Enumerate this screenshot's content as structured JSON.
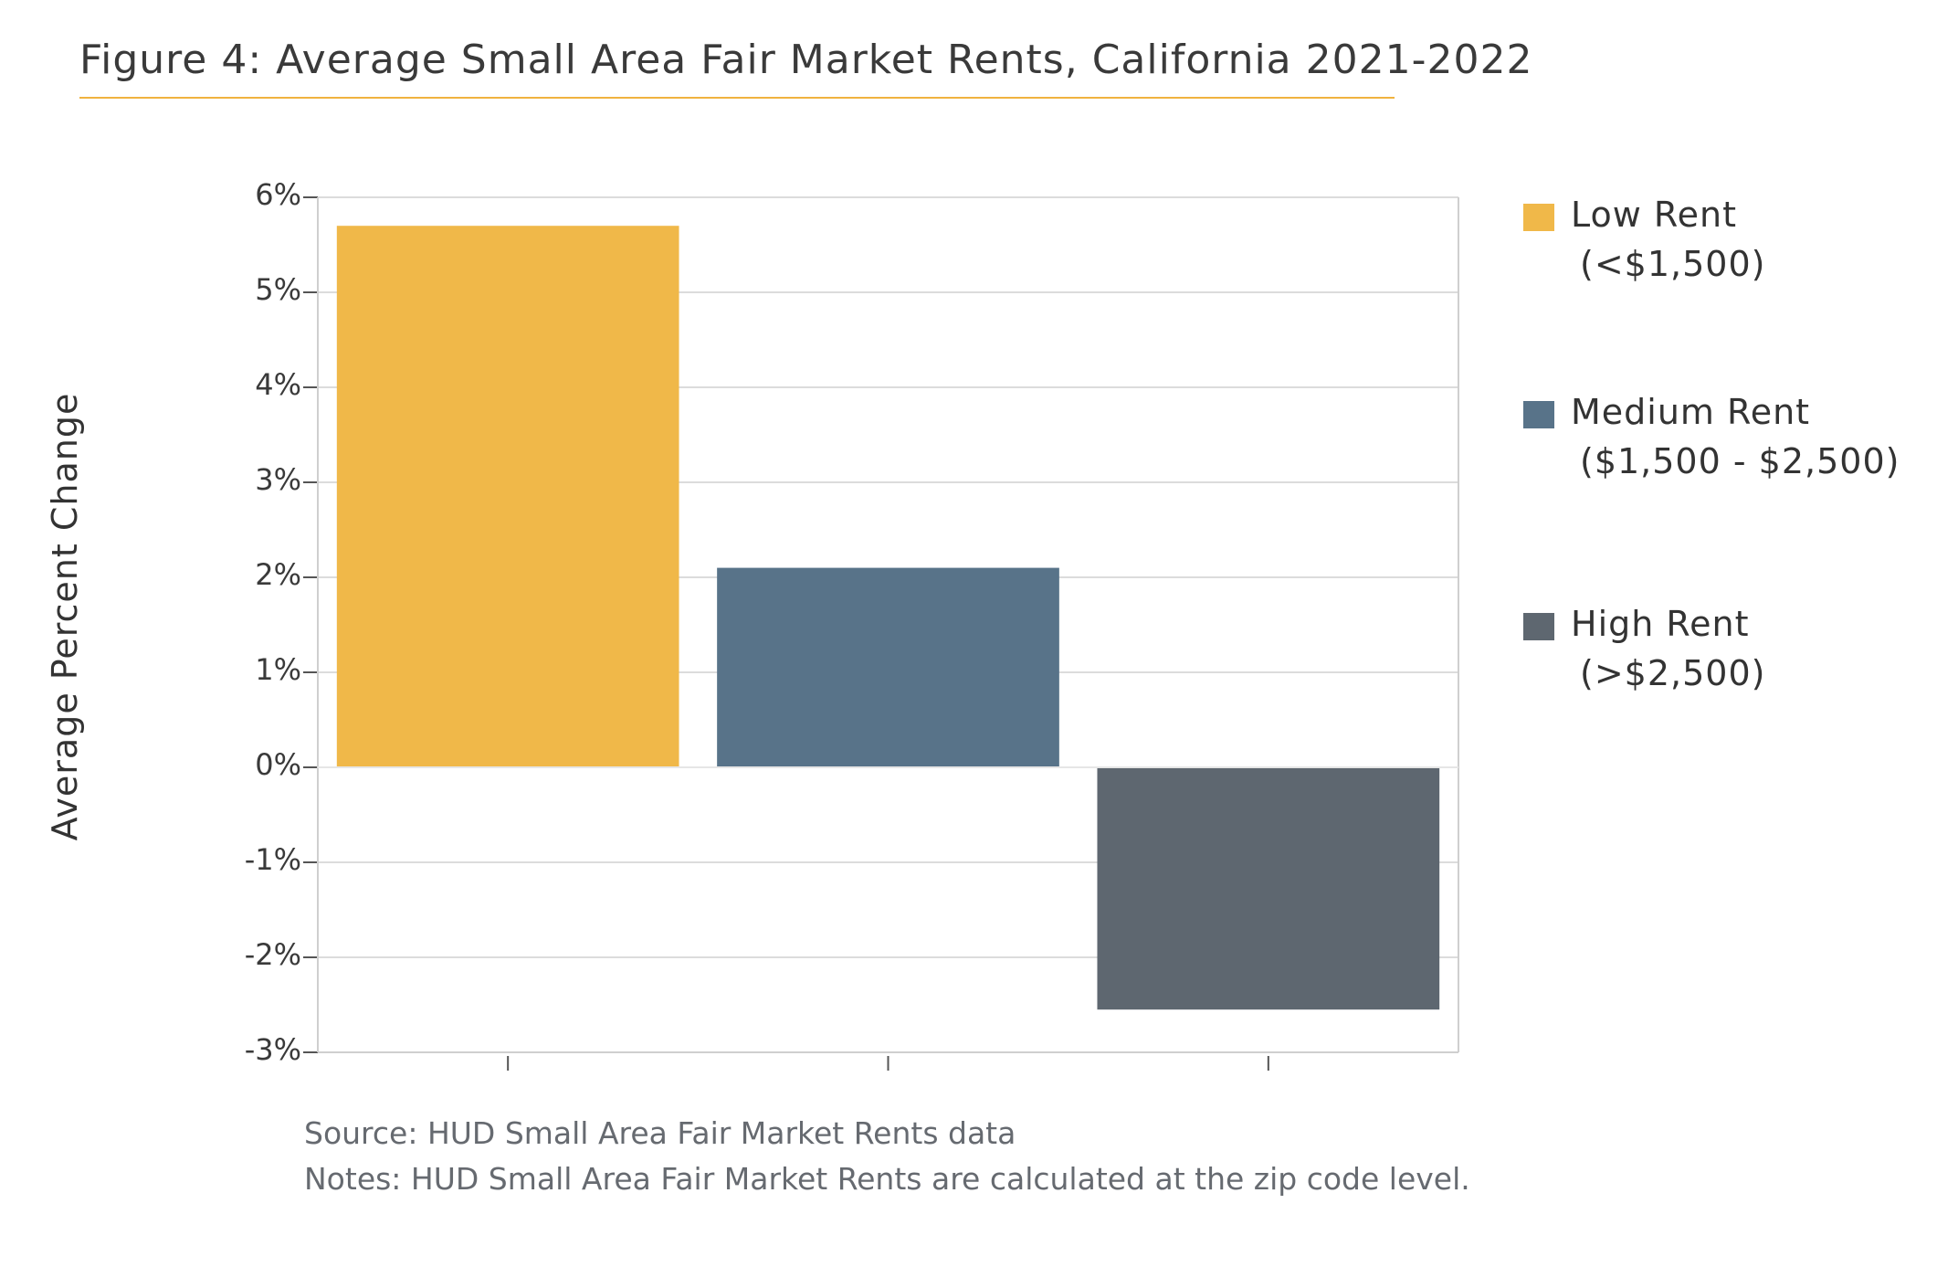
{
  "figure": {
    "title": "Figure 4: Average Small Area Fair Market Rents, California 2021-2022"
  },
  "legend": {
    "items": [
      {
        "name": "Low Rent",
        "range": "(<$1,500)",
        "color": "#f0b849"
      },
      {
        "name": "Medium Rent",
        "range": "($1,500 - $2,500)",
        "color": "#587389"
      },
      {
        "name": "High Rent",
        "range": "(>$2,500)",
        "color": "#5e6770"
      }
    ]
  },
  "notes": {
    "source": "Source: HUD Small Area Fair Market Rents data",
    "notes": "Notes: HUD Small Area Fair Market Rents are calculated at the zip code level."
  },
  "chart_data": {
    "type": "bar",
    "title": "Figure 4: Average Small Area Fair Market Rents, California 2021-2022",
    "xlabel": "",
    "ylabel": "Average Percent Change",
    "ylim": [
      -3,
      6
    ],
    "yticks": [
      6,
      5,
      4,
      3,
      2,
      1,
      0,
      -1,
      -2,
      -3
    ],
    "ytick_labels": [
      "6%",
      "5%",
      "4%",
      "3%",
      "2%",
      "1%",
      "0%",
      "-1%",
      "-2%",
      "-3%"
    ],
    "grid": true,
    "legend_position": "right",
    "categories": [
      "Low Rent",
      "Medium Rent",
      "High Rent"
    ],
    "values": [
      5.7,
      2.1,
      -2.55
    ],
    "colors": [
      "#f0b849",
      "#587389",
      "#5e6770"
    ],
    "gridline_color": "#dcdcdc",
    "axis_color": "#cfcfcf"
  }
}
